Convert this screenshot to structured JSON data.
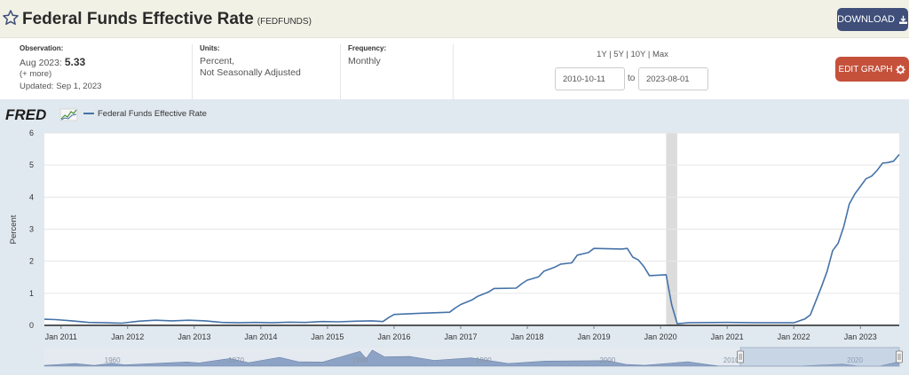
{
  "header": {
    "title": "Federal Funds Effective Rate",
    "series_id": "(FEDFUNDS)",
    "download_label": "DOWNLOAD"
  },
  "meta": {
    "observation_label": "Observation:",
    "observation_date": "Aug 2023:",
    "observation_value": "5.33",
    "more": "(+ more)",
    "updated": "Updated: Sep 1, 2023",
    "units_label": "Units:",
    "units_line1": "Percent,",
    "units_line2": "Not Seasonally Adjusted",
    "frequency_label": "Frequency:",
    "frequency_value": "Monthly"
  },
  "range": {
    "links": [
      "1Y",
      "5Y",
      "10Y",
      "Max"
    ],
    "start_date": "2010-10-11",
    "to_label": "to",
    "end_date": "2023-08-01",
    "edit_label": "EDIT GRAPH"
  },
  "logo_text": "FRED",
  "colors": {
    "line": "#4572a7",
    "header_bg": "#f1f1e6",
    "download_bg": "#3f4f7a",
    "edit_bg": "#c5513b",
    "chart_bg": "#e1e9f0",
    "recession": "#dcdcdc",
    "navigator_fill": "#8da3c5"
  },
  "icons": {
    "favorite": "star-outline-icon",
    "download": "download-icon",
    "edit": "gear-icon",
    "logo_mark": "chart-sparkline-icon"
  },
  "chart_data": {
    "type": "line",
    "title": "",
    "xlabel": "",
    "ylabel": "Percent",
    "legend": [
      "Federal Funds Effective Rate"
    ],
    "legend_placement": "top-left",
    "ylim": [
      0,
      6
    ],
    "yticks": [
      "0",
      "1",
      "2",
      "3",
      "4",
      "5",
      "6"
    ],
    "xticks": [
      "Jan 2011",
      "Jan 2012",
      "Jan 2013",
      "Jan 2014",
      "Jan 2015",
      "Jan 2016",
      "Jan 2017",
      "Jan 2018",
      "Jan 2019",
      "Jan 2020",
      "Jan 2021",
      "Jan 2022",
      "Jan 2023"
    ],
    "xtick_dates": [
      "2011-01",
      "2012-01",
      "2013-01",
      "2014-01",
      "2015-01",
      "2016-01",
      "2017-01",
      "2018-01",
      "2019-01",
      "2020-01",
      "2021-01",
      "2022-01",
      "2023-01"
    ],
    "grid": "horizontal",
    "recession_shading": [
      [
        "2020-02",
        "2020-04"
      ]
    ],
    "navigator_labels": [
      "1960",
      "1970",
      "1980",
      "1990",
      "2000",
      "2010",
      "2020"
    ],
    "navigator_selection": [
      "2010-10",
      "2023-08"
    ],
    "series": [
      {
        "name": "Federal Funds Effective Rate",
        "points": [
          [
            "2010-10",
            0.19
          ],
          [
            "2010-12",
            0.18
          ],
          [
            "2011-03",
            0.14
          ],
          [
            "2011-06",
            0.09
          ],
          [
            "2011-09",
            0.08
          ],
          [
            "2011-12",
            0.07
          ],
          [
            "2012-03",
            0.13
          ],
          [
            "2012-06",
            0.16
          ],
          [
            "2012-09",
            0.14
          ],
          [
            "2012-12",
            0.16
          ],
          [
            "2013-03",
            0.14
          ],
          [
            "2013-06",
            0.09
          ],
          [
            "2013-09",
            0.08
          ],
          [
            "2013-12",
            0.09
          ],
          [
            "2014-03",
            0.08
          ],
          [
            "2014-06",
            0.1
          ],
          [
            "2014-09",
            0.09
          ],
          [
            "2014-12",
            0.12
          ],
          [
            "2015-03",
            0.11
          ],
          [
            "2015-06",
            0.13
          ],
          [
            "2015-09",
            0.14
          ],
          [
            "2015-11",
            0.12
          ],
          [
            "2015-12",
            0.24
          ],
          [
            "2016-01",
            0.34
          ],
          [
            "2016-06",
            0.38
          ],
          [
            "2016-11",
            0.41
          ],
          [
            "2016-12",
            0.54
          ],
          [
            "2017-01",
            0.65
          ],
          [
            "2017-03",
            0.79
          ],
          [
            "2017-04",
            0.9
          ],
          [
            "2017-06",
            1.04
          ],
          [
            "2017-07",
            1.15
          ],
          [
            "2017-11",
            1.16
          ],
          [
            "2017-12",
            1.3
          ],
          [
            "2018-01",
            1.41
          ],
          [
            "2018-03",
            1.51
          ],
          [
            "2018-04",
            1.69
          ],
          [
            "2018-06",
            1.82
          ],
          [
            "2018-07",
            1.91
          ],
          [
            "2018-09",
            1.95
          ],
          [
            "2018-10",
            2.19
          ],
          [
            "2018-12",
            2.27
          ],
          [
            "2019-01",
            2.4
          ],
          [
            "2019-06",
            2.38
          ],
          [
            "2019-07",
            2.4
          ],
          [
            "2019-08",
            2.13
          ],
          [
            "2019-09",
            2.04
          ],
          [
            "2019-10",
            1.83
          ],
          [
            "2019-11",
            1.55
          ],
          [
            "2020-02",
            1.58
          ],
          [
            "2020-03",
            0.65
          ],
          [
            "2020-04",
            0.05
          ],
          [
            "2020-06",
            0.08
          ],
          [
            "2021-01",
            0.09
          ],
          [
            "2021-06",
            0.08
          ],
          [
            "2021-09",
            0.08
          ],
          [
            "2021-12",
            0.08
          ],
          [
            "2022-01",
            0.08
          ],
          [
            "2022-03",
            0.2
          ],
          [
            "2022-04",
            0.33
          ],
          [
            "2022-05",
            0.77
          ],
          [
            "2022-06",
            1.21
          ],
          [
            "2022-07",
            1.68
          ],
          [
            "2022-08",
            2.33
          ],
          [
            "2022-09",
            2.56
          ],
          [
            "2022-10",
            3.08
          ],
          [
            "2022-11",
            3.78
          ],
          [
            "2022-12",
            4.1
          ],
          [
            "2023-01",
            4.33
          ],
          [
            "2023-02",
            4.57
          ],
          [
            "2023-03",
            4.65
          ],
          [
            "2023-04",
            4.83
          ],
          [
            "2023-05",
            5.06
          ],
          [
            "2023-06",
            5.08
          ],
          [
            "2023-07",
            5.12
          ],
          [
            "2023-08",
            5.33
          ]
        ]
      }
    ]
  }
}
